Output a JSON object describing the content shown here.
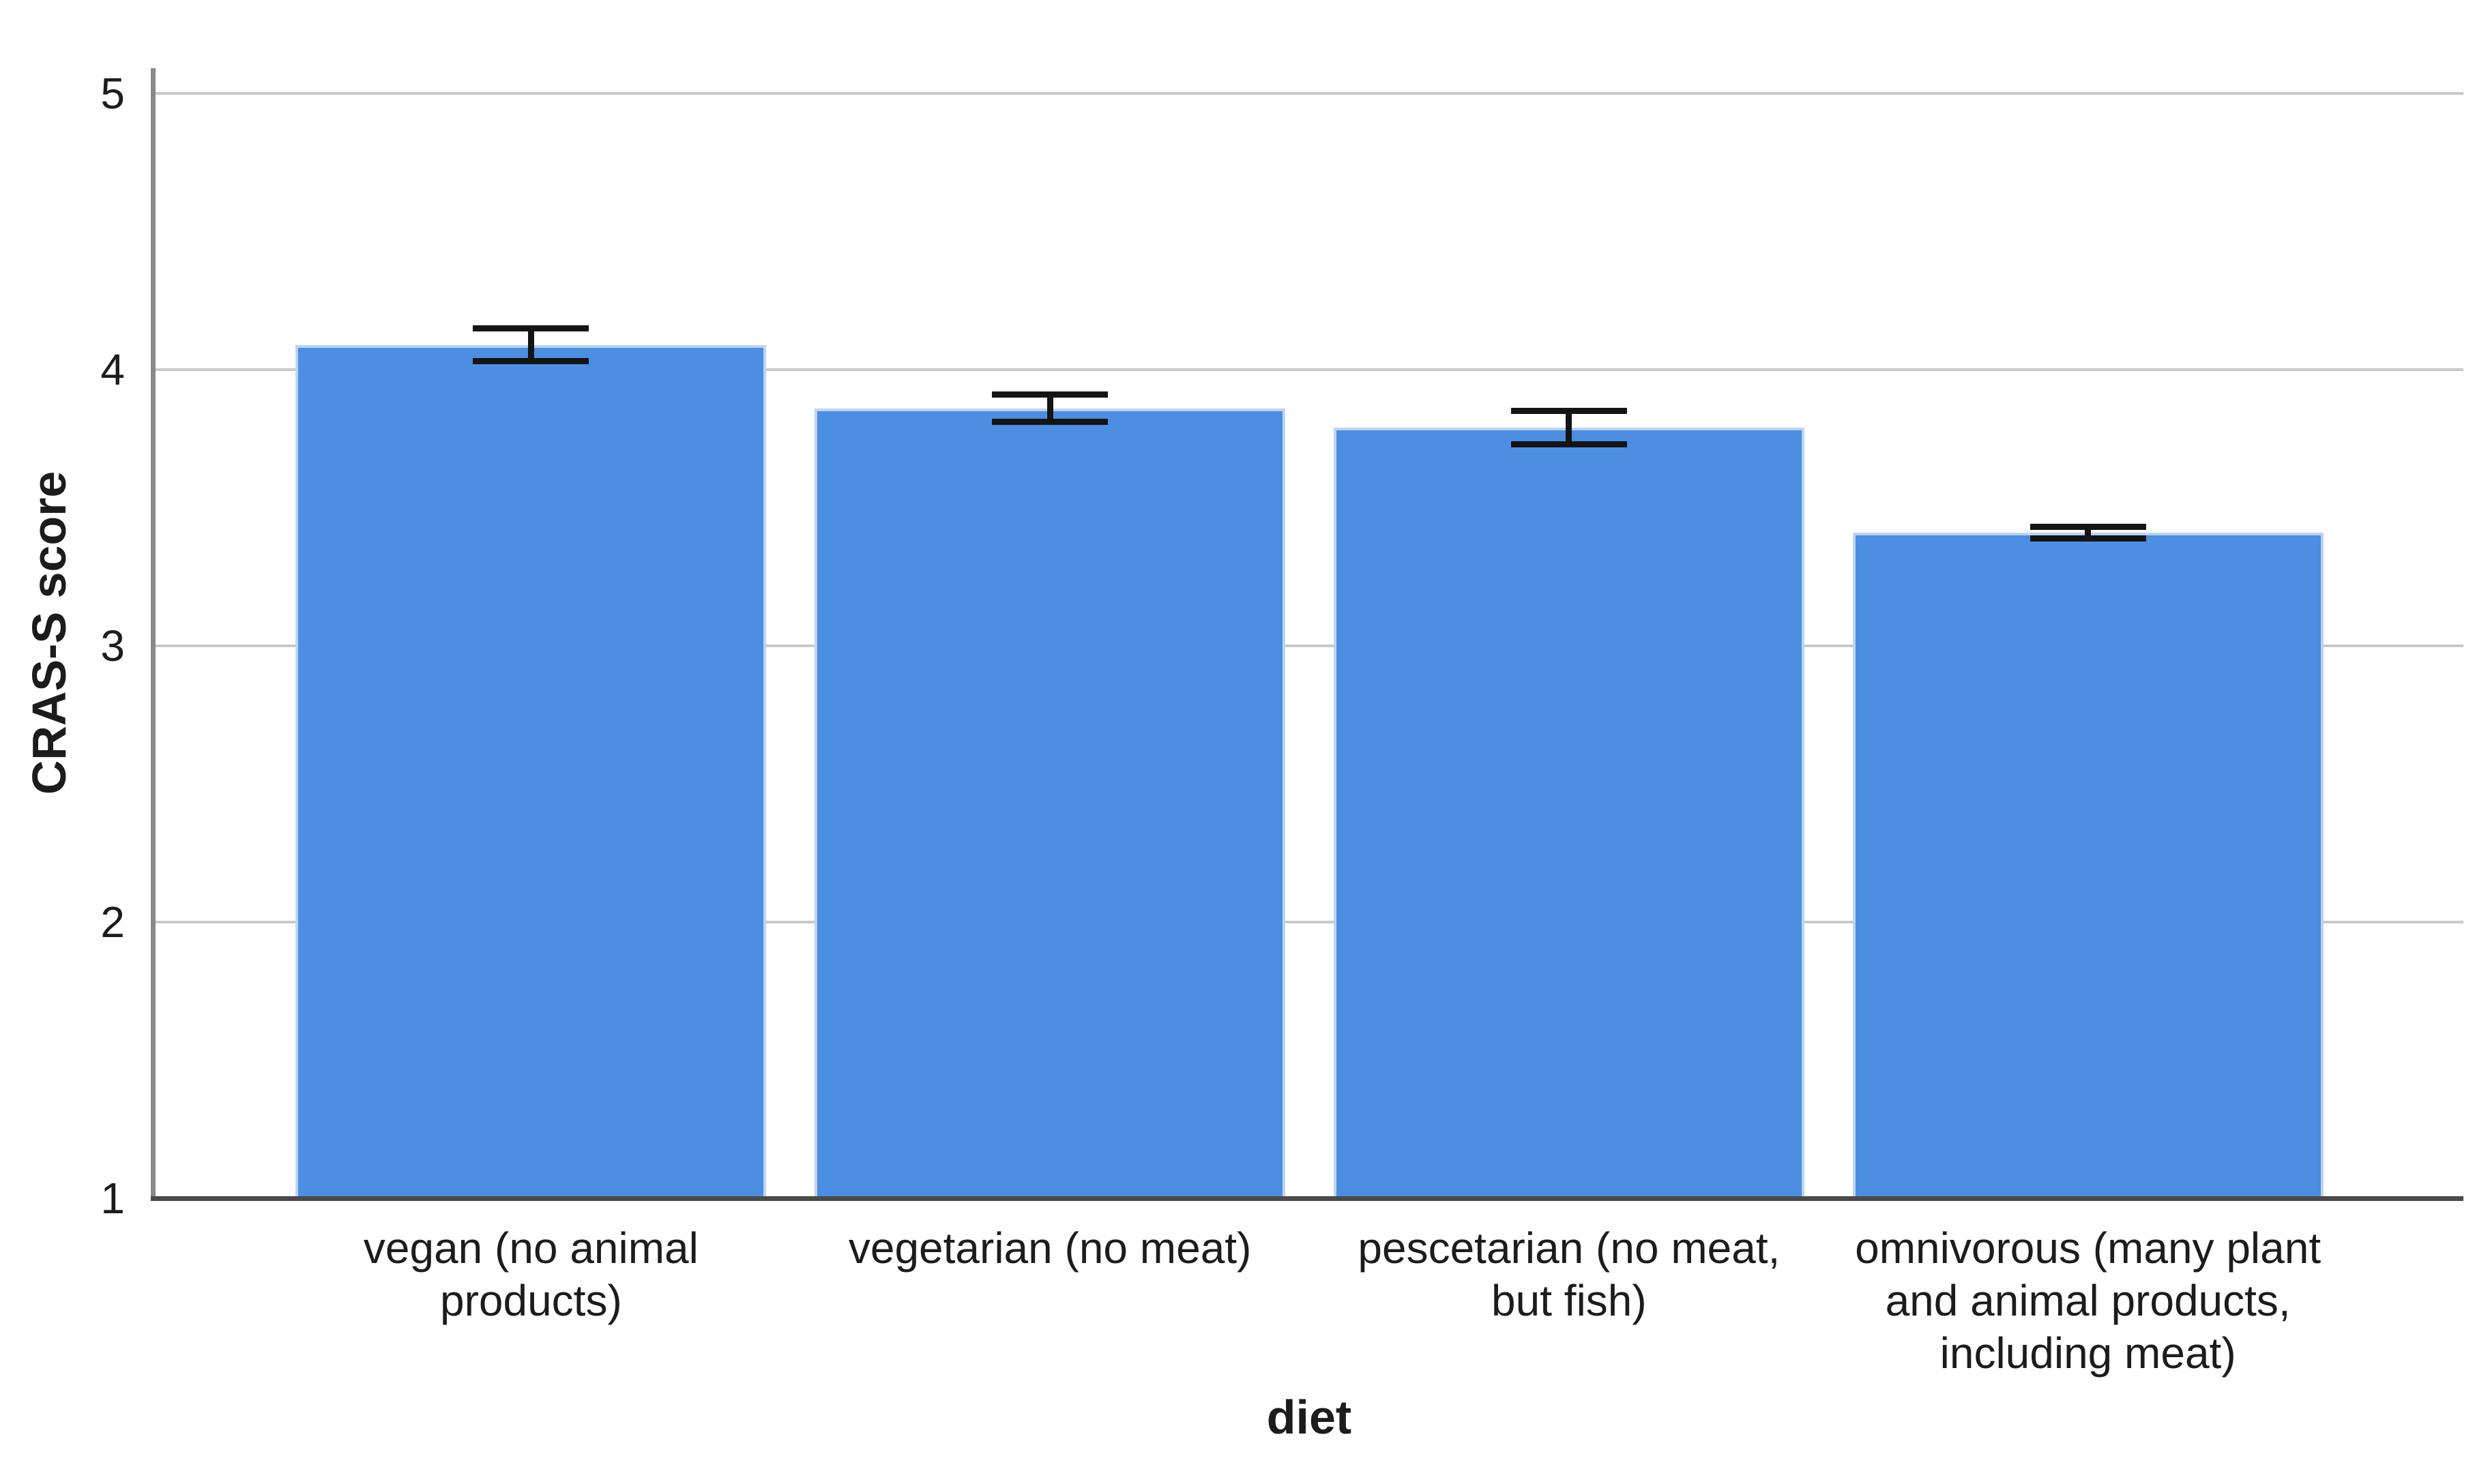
{
  "chart_data": {
    "type": "bar",
    "title": "",
    "xlabel": "diet",
    "ylabel": "CRAS-S score",
    "categories": [
      "vegan (no animal products)",
      "vegetarian (no meat)",
      "pescetarian (no meat, but fish)",
      "omnivorous (many plant and animal products, including meat)"
    ],
    "category_lines": [
      [
        "vegan (no animal",
        "products)"
      ],
      [
        "vegetarian (no meat)"
      ],
      [
        "pescetarian (no meat,",
        "but fish)"
      ],
      [
        "omnivorous (many plant",
        "and animal products,",
        "including meat)"
      ]
    ],
    "values": [
      4.09,
      3.86,
      3.79,
      3.41
    ],
    "errors": [
      0.06,
      0.05,
      0.06,
      0.02
    ],
    "ylim": [
      1,
      5
    ],
    "yticks": [
      1,
      2,
      3,
      4,
      5
    ],
    "grid": true,
    "legend": false,
    "colors": {
      "bar_fill": "#4b8ee2",
      "bar_edge": "#bcd4f3",
      "gridline": "#c9c9c9",
      "y_axis": "#8a8a8a",
      "baseline": "#4a4a4a",
      "error_bar": "#141414",
      "text": "#1c1c1c"
    }
  }
}
